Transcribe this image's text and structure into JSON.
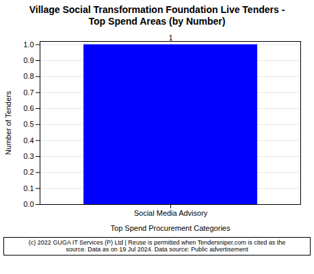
{
  "chart_data": {
    "type": "bar",
    "title": "Village Social Transformation Foundation Live Tenders -\nTop Spend Areas (by Number)",
    "categories": [
      "Social Media Advisory"
    ],
    "values": [
      1
    ],
    "color": "#0000FF",
    "ylabel": "Number of Tenders",
    "xlabel": "Top Spend Procurement Categories",
    "ylim": [
      0,
      1.02
    ],
    "yticks": [
      {
        "value": 0,
        "label": "0.0"
      },
      0.1,
      0.2,
      0.3,
      0.4,
      0.5,
      0.6,
      0.7,
      0.8,
      0.9,
      {
        "value": 1,
        "label": "1.0"
      }
    ],
    "grid": true,
    "data_labels": true,
    "footer": "(c) 2022 GUGA IT Services (P) Ltd | Reuse is permitted when Tendersniper.com is cited as the\nsource. Data as on 19 Jul 2024. Data source: Public advertisement"
  }
}
